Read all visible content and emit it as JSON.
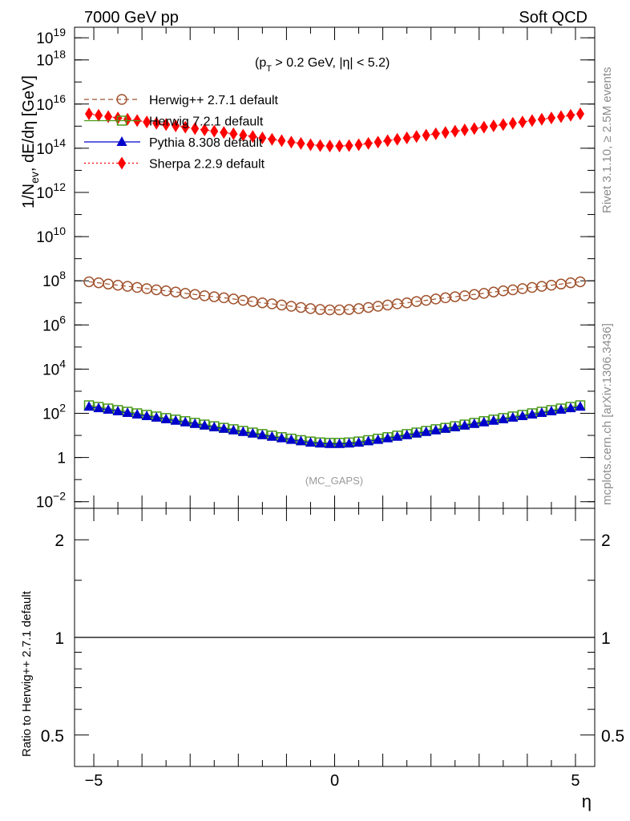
{
  "header": {
    "left": "7000 GeV pp",
    "right": "Soft QCD",
    "cut_label": "(p_T > 0.2 GeV, |η| < 5.2)",
    "analysis_tag": "(MC_GAPS)"
  },
  "side_text": {
    "top": "Rivet 3.1.10, ≥ 2.5M events",
    "bottom": "mcplots.cern.ch [arXiv:1306.3436]"
  },
  "colors": {
    "herwigpp": "#a0522d",
    "herwig7": "#4a9a18",
    "pythia": "#0000cc",
    "sherpa": "#ff0000",
    "reference_line": "#000000",
    "side_text": "#8c8c8c"
  },
  "chart_data": [
    {
      "type": "line",
      "panel": "main",
      "ylabel": "1/N_ev, dE/dη [GeV]",
      "xlabel": "",
      "yscale": "log",
      "xlim": [
        -5.4,
        5.4
      ],
      "ylim": [
        0.005,
        3e+19
      ],
      "x_ticks": [
        "−5",
        "0",
        "5"
      ],
      "y_ticks": [
        {
          "value": 0.01,
          "mant": "10",
          "exp": "−2"
        },
        {
          "value": 1,
          "mant": "1",
          "exp": ""
        },
        {
          "value": 100,
          "mant": "10",
          "exp": "2"
        },
        {
          "value": 10000,
          "mant": "10",
          "exp": "4"
        },
        {
          "value": 1000000,
          "mant": "10",
          "exp": "6"
        },
        {
          "value": 100000000,
          "mant": "10",
          "exp": "8"
        },
        {
          "value": 10000000000.0,
          "mant": "10",
          "exp": "10"
        },
        {
          "value": 1000000000000.0,
          "mant": "10",
          "exp": "12"
        },
        {
          "value": 100000000000000.0,
          "mant": "10",
          "exp": "14"
        },
        {
          "value": 1e+16,
          "mant": "10",
          "exp": "16"
        },
        {
          "value": 1e+18,
          "mant": "10",
          "exp": "18"
        },
        {
          "value": 1e+19,
          "mant": "10",
          "exp": "19"
        }
      ],
      "legend_position": "top-left",
      "x": [
        -5.1,
        -4.9,
        -4.7,
        -4.5,
        -4.3,
        -4.1,
        -3.9,
        -3.7,
        -3.5,
        -3.3,
        -3.1,
        -2.9,
        -2.7,
        -2.5,
        -2.3,
        -2.1,
        -1.9,
        -1.7,
        -1.5,
        -1.3,
        -1.1,
        -0.9,
        -0.7,
        -0.5,
        -0.3,
        -0.1,
        0.1,
        0.3,
        0.5,
        0.7,
        0.9,
        1.1,
        1.3,
        1.5,
        1.7,
        1.9,
        2.1,
        2.3,
        2.5,
        2.7,
        2.9,
        3.1,
        3.3,
        3.5,
        3.7,
        3.9,
        4.1,
        4.3,
        4.5,
        4.7,
        4.9,
        5.1
      ],
      "series": [
        {
          "name": "Herwig++ 2.7.1 default",
          "marker": "open-circle",
          "line": "dashed",
          "color": "#a0522d",
          "values": [
            90000000.0,
            81000000.0,
            71000000.0,
            63000000.0,
            56000000.0,
            50000000.0,
            44000000.0,
            39000000.0,
            35000000.0,
            31000000.0,
            27000000.0,
            24000000.0,
            21000000.0,
            19000000.0,
            17000000.0,
            15000000.0,
            13000000.0,
            11500000.0,
            10000000.0,
            9000000.0,
            8000000.0,
            7000000.0,
            6200000.0,
            5500000.0,
            5000000.0,
            4800000.0,
            4800000.0,
            5000000.0,
            5500000.0,
            6200000.0,
            7000000.0,
            8000000.0,
            9000000.0,
            10000000.0,
            11500000.0,
            13000000.0,
            15000000.0,
            17000000.0,
            19000000.0,
            21000000.0,
            24000000.0,
            27000000.0,
            31000000.0,
            35000000.0,
            39000000.0,
            44000000.0,
            50000000.0,
            56000000.0,
            63000000.0,
            71000000.0,
            81000000.0,
            90000000.0
          ]
        },
        {
          "name": "Herwig 7.2.1 default",
          "marker": "open-square",
          "line": "solid",
          "color": "#4a9a18",
          "values": [
            230,
            195,
            165,
            140,
            118,
            100,
            85,
            72,
            61,
            52,
            44,
            37,
            31,
            26,
            22,
            19,
            16,
            13.5,
            11.5,
            9.8,
            8.3,
            7.1,
            6.1,
            5.3,
            4.8,
            4.6,
            4.6,
            4.8,
            5.3,
            6.1,
            7.1,
            8.3,
            9.8,
            11.5,
            13.5,
            16,
            19,
            22,
            26,
            31,
            37,
            44,
            52,
            61,
            72,
            85,
            100,
            118,
            140,
            165,
            195,
            230
          ]
        },
        {
          "name": "Pythia 8.308 default",
          "marker": "filled-triangle",
          "line": "solid",
          "color": "#0000cc",
          "values": [
            200,
            170,
            145,
            123,
            104,
            88,
            75,
            64,
            54,
            46,
            39,
            33,
            28,
            23.5,
            20,
            17,
            14.3,
            12.1,
            10.3,
            8.7,
            7.4,
            6.3,
            5.4,
            4.7,
            4.3,
            4.1,
            4.1,
            4.3,
            4.7,
            5.4,
            6.3,
            7.4,
            8.7,
            10.3,
            12.1,
            14.3,
            17,
            20,
            23.5,
            28,
            33,
            39,
            46,
            54,
            64,
            75,
            88,
            104,
            123,
            145,
            170,
            200
          ]
        },
        {
          "name": "Sherpa 2.2.9 default",
          "marker": "filled-diamond",
          "line": "dotted",
          "color": "#ff0000",
          "values": [
            3600000000000000.0,
            3100000000000000.0,
            2700000000000000.0,
            2350000000000000.0,
            2050000000000000.0,
            1800000000000000.0,
            1550000000000000.0,
            1350000000000000.0,
            1180000000000000.0,
            1030000000000000.0,
            900000000000000.0,
            780000000000000.0,
            680000000000000.0,
            590000000000000.0,
            515000000000000.0,
            450000000000000.0,
            390000000000000.0,
            340000000000000.0,
            295000000000000.0,
            255000000000000.0,
            220000000000000.0,
            190000000000000.0,
            165000000000000.0,
            145000000000000.0,
            132000000000000.0,
            126000000000000.0,
            126000000000000.0,
            132000000000000.0,
            145000000000000.0,
            165000000000000.0,
            190000000000000.0,
            220000000000000.0,
            255000000000000.0,
            295000000000000.0,
            340000000000000.0,
            390000000000000.0,
            450000000000000.0,
            515000000000000.0,
            590000000000000.0,
            680000000000000.0,
            780000000000000.0,
            900000000000000.0,
            1030000000000000.0,
            1180000000000000.0,
            1350000000000000.0,
            1550000000000000.0,
            1800000000000000.0,
            2050000000000000.0,
            2350000000000000.0,
            2700000000000000.0,
            3100000000000000.0,
            3600000000000000.0
          ]
        }
      ]
    },
    {
      "type": "line",
      "panel": "ratio",
      "ylabel": "Ratio to Herwig++ 2.7.1 default",
      "xlabel": "η",
      "yscale": "log",
      "xlim": [
        -5.4,
        5.4
      ],
      "ylim": [
        0.4,
        2.5
      ],
      "x_ticks": [
        "−5",
        "0",
        "5"
      ],
      "y_ticks": [
        {
          "value": 0.5,
          "label": "0.5"
        },
        {
          "value": 1,
          "label": "1"
        },
        {
          "value": 2,
          "label": "2"
        }
      ],
      "series": [
        {
          "name": "Herwig++ 2.7.1 default",
          "color": "#000000",
          "values_constant": 1
        }
      ]
    }
  ]
}
